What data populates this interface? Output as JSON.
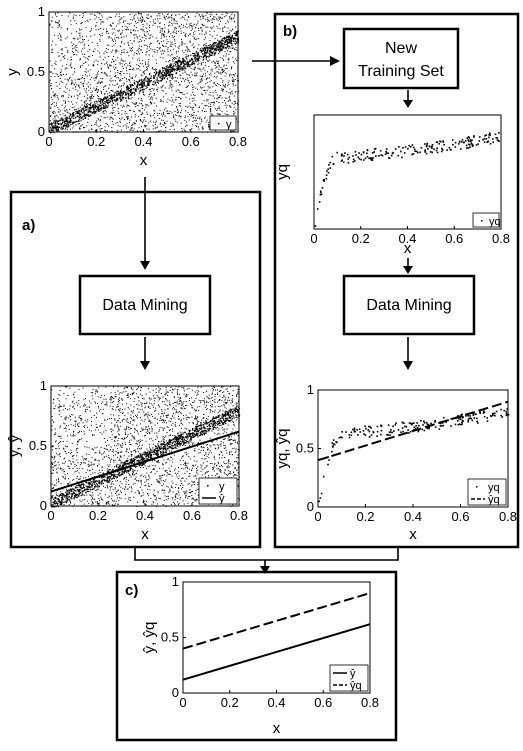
{
  "panels": {
    "a": "a)",
    "b": "b)",
    "c": "c)"
  },
  "boxes": {
    "data_mining_a": "Data Mining",
    "new_training_set_line1": "New",
    "new_training_set_line2": "Training Set",
    "data_mining_b": "Data Mining"
  },
  "chart_data": [
    {
      "id": "top",
      "type": "scatter",
      "xlabel": "x",
      "ylabel": "y",
      "xlim": [
        0,
        0.8
      ],
      "ylim": [
        0,
        1
      ],
      "xticks": [
        "0",
        "0.2",
        "0.4",
        "0.6",
        "0.8"
      ],
      "yticks": [
        "0",
        "0.5",
        "1"
      ],
      "legend": [
        "y"
      ],
      "legend_position": "bottom-right",
      "series": [
        {
          "name": "y",
          "kind": "dense-noise-with-band",
          "band": {
            "x": [
              0,
              0.8
            ],
            "y": [
              0.02,
              0.8
            ]
          }
        }
      ]
    },
    {
      "id": "a",
      "type": "scatter",
      "xlabel": "x",
      "ylabel": "y, ŷ",
      "xlim": [
        0,
        0.8
      ],
      "ylim": [
        0,
        1
      ],
      "xticks": [
        "0",
        "0.2",
        "0.4",
        "0.6",
        "0.8"
      ],
      "yticks": [
        "0",
        "0.5",
        "1"
      ],
      "legend": [
        "y",
        "ŷ"
      ],
      "legend_position": "bottom-right",
      "series": [
        {
          "name": "y",
          "kind": "dense-noise-with-band",
          "band": {
            "x": [
              0,
              0.8
            ],
            "y": [
              0.02,
              0.8
            ]
          }
        },
        {
          "name": "ŷ",
          "kind": "line",
          "style": "solid",
          "x": [
            0,
            0.8
          ],
          "y": [
            0.12,
            0.62
          ]
        }
      ]
    },
    {
      "id": "b_top",
      "type": "scatter",
      "xlabel": "x",
      "ylabel": "yq",
      "xlim": [
        0,
        0.8
      ],
      "ylim": [
        0,
        1
      ],
      "xticks": [
        "0",
        "0.2",
        "0.4",
        "0.6",
        "0.8"
      ],
      "yticks": [],
      "legend": [
        "yq"
      ],
      "legend_position": "bottom-right",
      "series": [
        {
          "name": "yq",
          "kind": "saturating-scatter",
          "x": [
            0.0,
            0.02,
            0.04,
            0.06,
            0.08,
            0.1,
            0.15,
            0.2,
            0.3,
            0.4,
            0.5,
            0.6,
            0.7,
            0.8
          ],
          "y": [
            0.05,
            0.25,
            0.42,
            0.55,
            0.62,
            0.64,
            0.63,
            0.65,
            0.67,
            0.69,
            0.72,
            0.75,
            0.78,
            0.82
          ]
        }
      ]
    },
    {
      "id": "b_bottom",
      "type": "scatter",
      "xlabel": "x",
      "ylabel": "yq, ŷq",
      "xlim": [
        0,
        0.8
      ],
      "ylim": [
        0,
        1
      ],
      "xticks": [
        "0",
        "0.2",
        "0.4",
        "0.6",
        "0.8"
      ],
      "yticks": [
        "0",
        "0.5",
        "1"
      ],
      "legend": [
        "yq",
        "ŷq"
      ],
      "legend_position": "bottom-right",
      "series": [
        {
          "name": "yq",
          "kind": "saturating-scatter",
          "x": [
            0.0,
            0.02,
            0.04,
            0.06,
            0.08,
            0.1,
            0.15,
            0.2,
            0.3,
            0.4,
            0.5,
            0.6,
            0.7,
            0.8
          ],
          "y": [
            0.05,
            0.25,
            0.42,
            0.55,
            0.62,
            0.64,
            0.63,
            0.65,
            0.67,
            0.69,
            0.72,
            0.75,
            0.78,
            0.82
          ]
        },
        {
          "name": "ŷq",
          "kind": "line",
          "style": "dashed",
          "x": [
            0,
            0.8
          ],
          "y": [
            0.4,
            0.9
          ]
        }
      ]
    },
    {
      "id": "c",
      "type": "line",
      "xlabel": "x",
      "ylabel": "ŷ, ŷq",
      "xlim": [
        0,
        0.8
      ],
      "ylim": [
        0,
        1
      ],
      "xticks": [
        "0",
        "0.2",
        "0.4",
        "0.6",
        "0.8"
      ],
      "yticks": [
        "0",
        "0.5",
        "1"
      ],
      "legend": [
        "ŷ",
        "ŷq"
      ],
      "legend_position": "bottom-right",
      "series": [
        {
          "name": "ŷ",
          "kind": "line",
          "style": "solid",
          "x": [
            0,
            0.8
          ],
          "y": [
            0.12,
            0.62
          ]
        },
        {
          "name": "ŷq",
          "kind": "line",
          "style": "dashed",
          "x": [
            0,
            0.8
          ],
          "y": [
            0.4,
            0.9
          ]
        }
      ]
    }
  ]
}
